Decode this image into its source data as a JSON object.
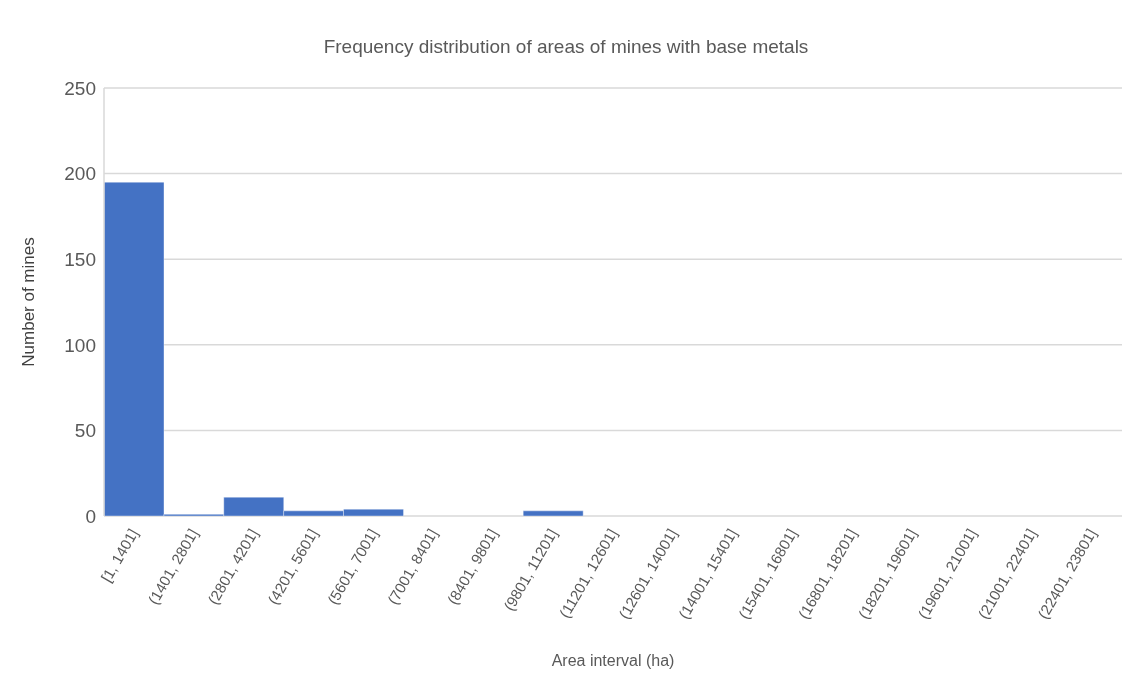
{
  "chart_data": {
    "type": "bar",
    "title": "Frequency distribution of areas of mines with base metals",
    "xlabel": "Area interval (ha)",
    "ylabel": "Number of mines",
    "categories": [
      "[1, 1401]",
      "(1401, 2801]",
      "(2801, 4201]",
      "(4201, 5601]",
      "(5601, 7001]",
      "(7001, 8401]",
      "(8401, 9801]",
      "(9801, 11201]",
      "(11201, 12601]",
      "(12601, 14001]",
      "(14001, 15401]",
      "(15401, 16801]",
      "(16801, 18201]",
      "(18201, 19601]",
      "(19601, 21001]",
      "(21001, 22401]",
      "(22401, 23801]"
    ],
    "values": [
      195,
      1,
      11,
      3,
      4,
      0,
      0,
      3,
      0,
      0,
      0,
      0,
      0,
      0,
      0,
      0,
      0
    ],
    "color": "#4472c4",
    "ylim": [
      0,
      250
    ],
    "yticks": [
      0,
      50,
      100,
      150,
      200,
      250
    ],
    "grid": "y",
    "legend": false
  }
}
